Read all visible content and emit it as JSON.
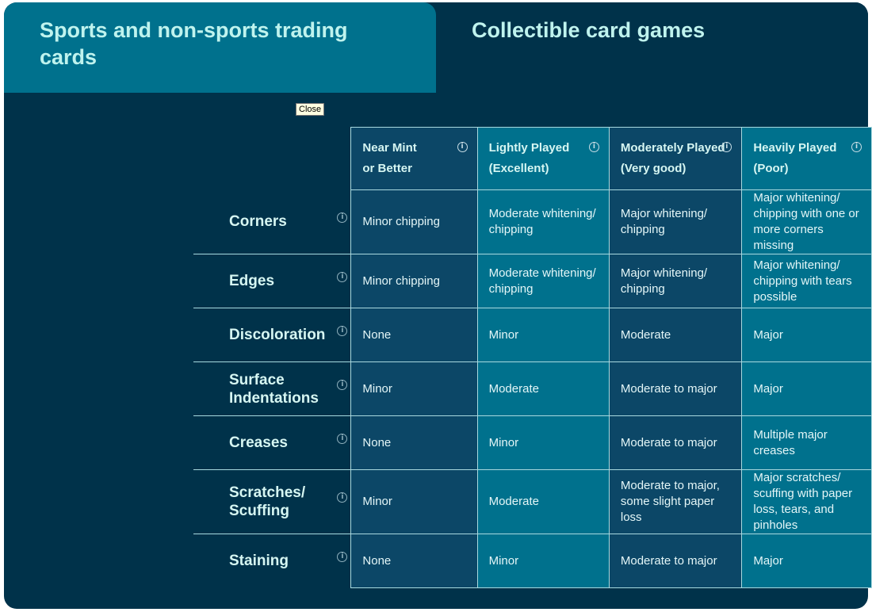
{
  "tabs": [
    {
      "label": "Sports and non-sports trading cards",
      "active": true
    },
    {
      "label": "Collectible card games",
      "active": false
    }
  ],
  "tooltip": "Close",
  "columns": [
    {
      "line1": "Near Mint",
      "line2": "or Better"
    },
    {
      "line1": "Lightly Played",
      "line2": "(Excellent)"
    },
    {
      "line1": "Moderately Played",
      "line2": "(Very good)"
    },
    {
      "line1": "Heavily Played",
      "line2": "(Poor)"
    }
  ],
  "rows": [
    {
      "label": "Corners",
      "cells": [
        "Minor chipping",
        "Moderate whitening/ chipping",
        "Major whitening/ chipping",
        "Major whitening/ chipping with one or more corners missing"
      ]
    },
    {
      "label": "Edges",
      "cells": [
        "Minor chipping",
        "Moderate whitening/ chipping",
        "Major whitening/ chipping",
        "Major whitening/ chipping with tears possible"
      ]
    },
    {
      "label": "Discoloration",
      "cells": [
        "None",
        "Minor",
        "Moderate",
        "Major"
      ]
    },
    {
      "label": "Surface Indentations",
      "cells": [
        "Minor",
        "Moderate",
        "Moderate to major",
        "Major"
      ]
    },
    {
      "label": "Creases",
      "cells": [
        "None",
        "Minor",
        "Moderate to major",
        "Multiple major creases"
      ]
    },
    {
      "label": "Scratches/ Scuffing",
      "cells": [
        "Minor",
        "Moderate",
        "Moderate to major, some slight paper loss",
        "Major scratches/ scuffing with paper loss, tears, and pinholes"
      ]
    },
    {
      "label": "Staining",
      "cells": [
        "None",
        "Minor",
        "Moderate to major",
        "Major"
      ]
    }
  ],
  "colors": {
    "background": "#00324a",
    "teal": "#00718d",
    "dark_cell": "#0c4767",
    "heading": "#bff3ee"
  },
  "icons": {
    "info": "info-circle-icon"
  }
}
